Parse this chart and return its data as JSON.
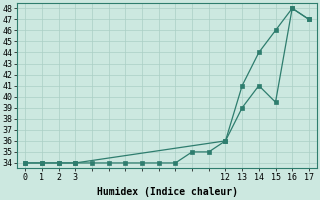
{
  "line_color": "#2e7d6e",
  "bg_color": "#cce8e0",
  "grid_color_major": "#aacfc5",
  "grid_color_minor": "#bbddd6",
  "xlabel": "Humidex (Indice chaleur)",
  "ylim": [
    33.5,
    48.5
  ],
  "yticks": [
    34,
    35,
    36,
    37,
    38,
    39,
    40,
    41,
    42,
    43,
    44,
    45,
    46,
    47,
    48
  ],
  "xtick_labels": [
    "0",
    "1",
    "2",
    "3",
    "",
    "",
    "",
    "",
    "",
    "",
    "",
    "",
    "12",
    "13",
    "14",
    "15",
    "16",
    "17"
  ],
  "line1_x": [
    0,
    1,
    2,
    3,
    4,
    5,
    6,
    7,
    8,
    9,
    10,
    11,
    12,
    13,
    14,
    15,
    16,
    17
  ],
  "line1_y": [
    34,
    34,
    34,
    34,
    34,
    34,
    34,
    34,
    34,
    34,
    35,
    35,
    36,
    39,
    41,
    39.5,
    48,
    47
  ],
  "line2_x": [
    0,
    1,
    2,
    3,
    12,
    13,
    14,
    15,
    16,
    17
  ],
  "line2_y": [
    34,
    34,
    34,
    34,
    36,
    41,
    44,
    46,
    48,
    47
  ],
  "marker_size": 3
}
